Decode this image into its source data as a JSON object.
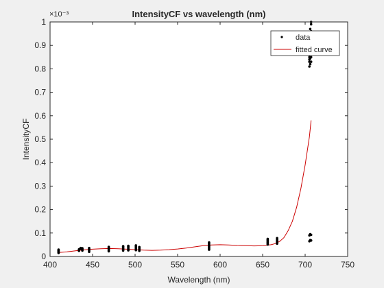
{
  "chart_data": {
    "type": "scatter",
    "title": "IntensityCF vs wavelength (nm)",
    "xlabel": "Wavelength (nm)",
    "ylabel": "IntensityCF",
    "y_exponent_label": "×10⁻³",
    "xlim": [
      400,
      750
    ],
    "ylim": [
      0,
      1
    ],
    "x_ticks": [
      400,
      450,
      500,
      550,
      600,
      650,
      700,
      750
    ],
    "x_tick_labels": [
      "400",
      "450",
      "500",
      "550",
      "600",
      "650",
      "700",
      "750"
    ],
    "y_ticks": [
      0,
      0.1,
      0.2,
      0.3,
      0.4,
      0.5,
      0.6,
      0.7,
      0.8,
      0.9,
      1
    ],
    "y_tick_labels": [
      "0",
      "0.1",
      "0.2",
      "0.3",
      "0.4",
      "0.5",
      "0.6",
      "0.7",
      "0.8",
      "0.9",
      "1"
    ],
    "grid": false,
    "legend_position": "top-right",
    "colors": {
      "data": "#000000",
      "fit": "#cc0000",
      "axes": "#262626",
      "plot_bg": "#ffffff"
    },
    "series": [
      {
        "name": "data",
        "style": "points",
        "x": [
          410,
          410,
          410,
          410,
          410,
          410,
          434,
          434,
          434,
          436,
          436,
          438,
          438,
          438,
          438,
          446,
          446,
          446,
          446,
          446,
          469,
          469,
          469,
          469,
          469,
          469,
          486,
          486,
          486,
          486,
          486,
          486,
          492,
          492,
          492,
          492,
          492,
          492,
          501,
          501,
          501,
          501,
          501,
          501,
          505,
          505,
          505,
          505,
          505,
          587,
          587,
          587,
          587,
          587,
          587,
          587,
          587,
          587,
          656,
          656,
          656,
          656,
          656,
          656,
          656,
          667,
          667,
          667,
          667,
          667,
          667,
          705,
          705,
          705,
          705,
          705,
          705,
          705,
          705,
          706,
          706,
          706,
          706,
          706,
          706,
          706,
          707,
          707,
          707,
          707,
          707,
          707,
          707,
          707,
          705,
          705,
          706,
          706,
          707,
          707
        ],
        "y": [
          0.015,
          0.018,
          0.021,
          0.024,
          0.026,
          0.029,
          0.024,
          0.027,
          0.03,
          0.033,
          0.036,
          0.025,
          0.028,
          0.032,
          0.035,
          0.02,
          0.024,
          0.028,
          0.032,
          0.036,
          0.022,
          0.026,
          0.03,
          0.034,
          0.038,
          0.041,
          0.025,
          0.029,
          0.033,
          0.037,
          0.041,
          0.044,
          0.026,
          0.03,
          0.034,
          0.038,
          0.042,
          0.045,
          0.027,
          0.031,
          0.035,
          0.039,
          0.043,
          0.047,
          0.024,
          0.028,
          0.032,
          0.036,
          0.04,
          0.029,
          0.033,
          0.037,
          0.041,
          0.045,
          0.049,
          0.053,
          0.057,
          0.06,
          0.051,
          0.055,
          0.059,
          0.063,
          0.067,
          0.071,
          0.075,
          0.055,
          0.059,
          0.063,
          0.067,
          0.072,
          0.078,
          0.81,
          0.83,
          0.84,
          0.85,
          0.86,
          0.87,
          0.88,
          0.9,
          0.82,
          0.845,
          0.865,
          0.885,
          0.91,
          0.95,
          0.97,
          0.83,
          0.85,
          0.87,
          0.89,
          0.92,
          0.96,
          0.99,
          1.0,
          0.065,
          0.09,
          0.07,
          0.095,
          0.068,
          0.092
        ]
      },
      {
        "name": "fitted curve",
        "style": "line",
        "x": [
          410,
          420,
          430,
          440,
          450,
          460,
          470,
          480,
          490,
          500,
          510,
          520,
          530,
          540,
          550,
          560,
          570,
          580,
          590,
          600,
          610,
          620,
          630,
          640,
          650,
          660,
          665,
          670,
          675,
          680,
          685,
          690,
          695,
          700,
          705,
          707
        ],
        "y": [
          0.017,
          0.02,
          0.024,
          0.028,
          0.031,
          0.033,
          0.034,
          0.033,
          0.031,
          0.029,
          0.027,
          0.026,
          0.027,
          0.029,
          0.032,
          0.036,
          0.041,
          0.046,
          0.049,
          0.05,
          0.049,
          0.047,
          0.046,
          0.045,
          0.046,
          0.05,
          0.055,
          0.064,
          0.08,
          0.11,
          0.15,
          0.21,
          0.29,
          0.39,
          0.51,
          0.58
        ]
      }
    ]
  }
}
